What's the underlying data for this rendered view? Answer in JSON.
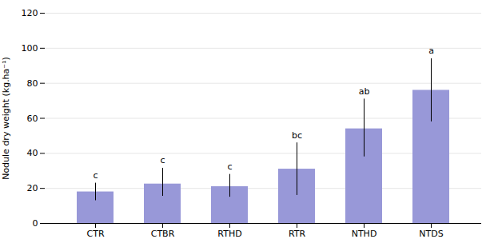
{
  "chart_data": {
    "type": "bar",
    "categories": [
      "CTR",
      "CTBR",
      "RTHD",
      "RTR",
      "NTHD",
      "NTDS"
    ],
    "values": [
      18,
      22.5,
      21,
      31,
      54,
      76
    ],
    "error_upper": [
      5,
      9,
      7,
      15,
      17,
      18
    ],
    "error_lower": [
      5,
      7,
      6,
      15,
      16,
      18
    ],
    "annotations": [
      "c",
      "c",
      "c",
      "bc",
      "ab",
      "a"
    ],
    "ylabel": "Nodule dry weight (kg.ha⁻¹)",
    "color": "#9898d8",
    "ylim": [
      0,
      120
    ],
    "yticks": [
      0,
      20,
      40,
      60,
      80,
      100,
      120
    ],
    "grid": true
  }
}
